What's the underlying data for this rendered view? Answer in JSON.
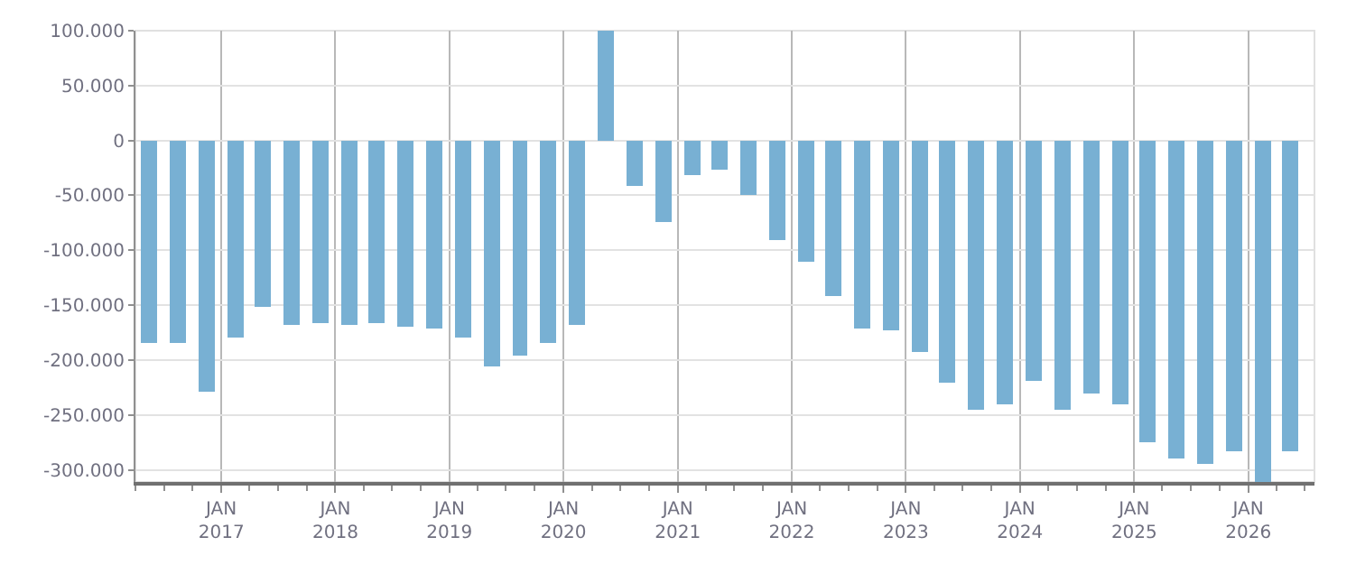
{
  "chart_data": {
    "type": "bar",
    "color": "#78b0d3",
    "x": [
      "2016-05-15",
      "2016-08-15",
      "2016-11-15",
      "2017-02-15",
      "2017-05-15",
      "2017-08-15",
      "2017-11-15",
      "2018-02-15",
      "2018-05-15",
      "2018-08-15",
      "2018-11-15",
      "2019-02-15",
      "2019-05-15",
      "2019-08-15",
      "2019-11-15",
      "2020-02-15",
      "2020-05-15",
      "2020-08-15",
      "2020-11-15",
      "2021-02-15",
      "2021-05-15",
      "2021-08-15",
      "2021-11-15",
      "2022-02-15",
      "2022-05-15",
      "2022-08-15",
      "2022-11-15",
      "2023-02-15",
      "2023-05-15",
      "2023-08-15",
      "2023-11-15",
      "2024-02-15",
      "2024-05-15",
      "2024-08-15",
      "2024-11-15",
      "2025-02-15",
      "2025-05-15",
      "2025-08-15",
      "2025-11-15",
      "2026-02-15",
      "2026-05-15"
    ],
    "values": [
      -185000,
      -184000,
      -229000,
      -179000,
      -151500,
      -168500,
      -165500,
      -168500,
      -167000,
      -170000,
      -171500,
      -179000,
      -205500,
      -196500,
      -184000,
      -168500,
      100000,
      -42000,
      -74000,
      -31000,
      -26000,
      -49500,
      -91000,
      -111000,
      -142000,
      -171500,
      -173000,
      -192000,
      -221000,
      -246000,
      -241000,
      -219500,
      -246000,
      -230500,
      -241000,
      -275000,
      -289000,
      -294000,
      -283000,
      -311000,
      -283000
    ],
    "xlim": [
      "2016-04-01",
      "2026-08-01"
    ],
    "xticks": [
      {
        "value": "2017-01-01",
        "label": "JAN\n2017"
      },
      {
        "value": "2018-01-01",
        "label": "JAN\n2018"
      },
      {
        "value": "2019-01-01",
        "label": "JAN\n2019"
      },
      {
        "value": "2020-01-01",
        "label": "JAN\n2020"
      },
      {
        "value": "2021-01-01",
        "label": "JAN\n2021"
      },
      {
        "value": "2022-01-01",
        "label": "JAN\n2022"
      },
      {
        "value": "2023-01-01",
        "label": "JAN\n2023"
      },
      {
        "value": "2024-01-01",
        "label": "JAN\n2024"
      },
      {
        "value": "2025-01-01",
        "label": "JAN\n2025"
      },
      {
        "value": "2026-01-01",
        "label": "JAN\n2026"
      }
    ],
    "ylim": [
      -311000,
      100000
    ],
    "yticks": [
      {
        "value": 100000,
        "label": "100.000"
      },
      {
        "value": 50000,
        "label": "50.000"
      },
      0,
      {
        "value": -50000,
        "label": "-50.000"
      },
      {
        "value": -100000,
        "label": "-100.000"
      },
      {
        "value": -150000,
        "label": "-150.000"
      },
      {
        "value": -200000,
        "label": "-200.000"
      },
      {
        "value": -250000,
        "label": "-250.000"
      },
      {
        "value": -300000,
        "label": "-300.000"
      }
    ],
    "grid": true,
    "legend": false
  }
}
